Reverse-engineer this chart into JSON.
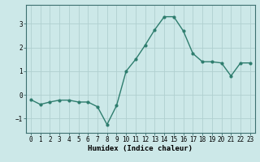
{
  "x": [
    0,
    1,
    2,
    3,
    4,
    5,
    6,
    7,
    8,
    9,
    10,
    11,
    12,
    13,
    14,
    15,
    16,
    17,
    18,
    19,
    20,
    21,
    22,
    23
  ],
  "y": [
    -0.2,
    -0.4,
    -0.3,
    -0.22,
    -0.22,
    -0.3,
    -0.3,
    -0.5,
    -1.25,
    -0.45,
    1.0,
    1.5,
    2.1,
    2.75,
    3.3,
    3.3,
    2.7,
    1.75,
    1.4,
    1.4,
    1.35,
    0.8,
    1.35,
    1.35
  ],
  "line_color": "#2e7d6e",
  "marker_color": "#2e7d6e",
  "bg_color": "#cce8e8",
  "grid_color": "#b0d0d0",
  "xlabel": "Humidex (Indice chaleur)",
  "xlim": [
    -0.5,
    23.5
  ],
  "ylim": [
    -1.6,
    3.8
  ],
  "yticks": [
    -1,
    0,
    1,
    2,
    3
  ],
  "xtick_labels": [
    "0",
    "1",
    "2",
    "3",
    "4",
    "5",
    "6",
    "7",
    "8",
    "9",
    "10",
    "11",
    "12",
    "13",
    "14",
    "15",
    "16",
    "17",
    "18",
    "19",
    "20",
    "21",
    "22",
    "23"
  ],
  "tick_fontsize": 5.5,
  "xlabel_fontsize": 6.5,
  "linewidth": 1.0,
  "markersize": 2.0
}
